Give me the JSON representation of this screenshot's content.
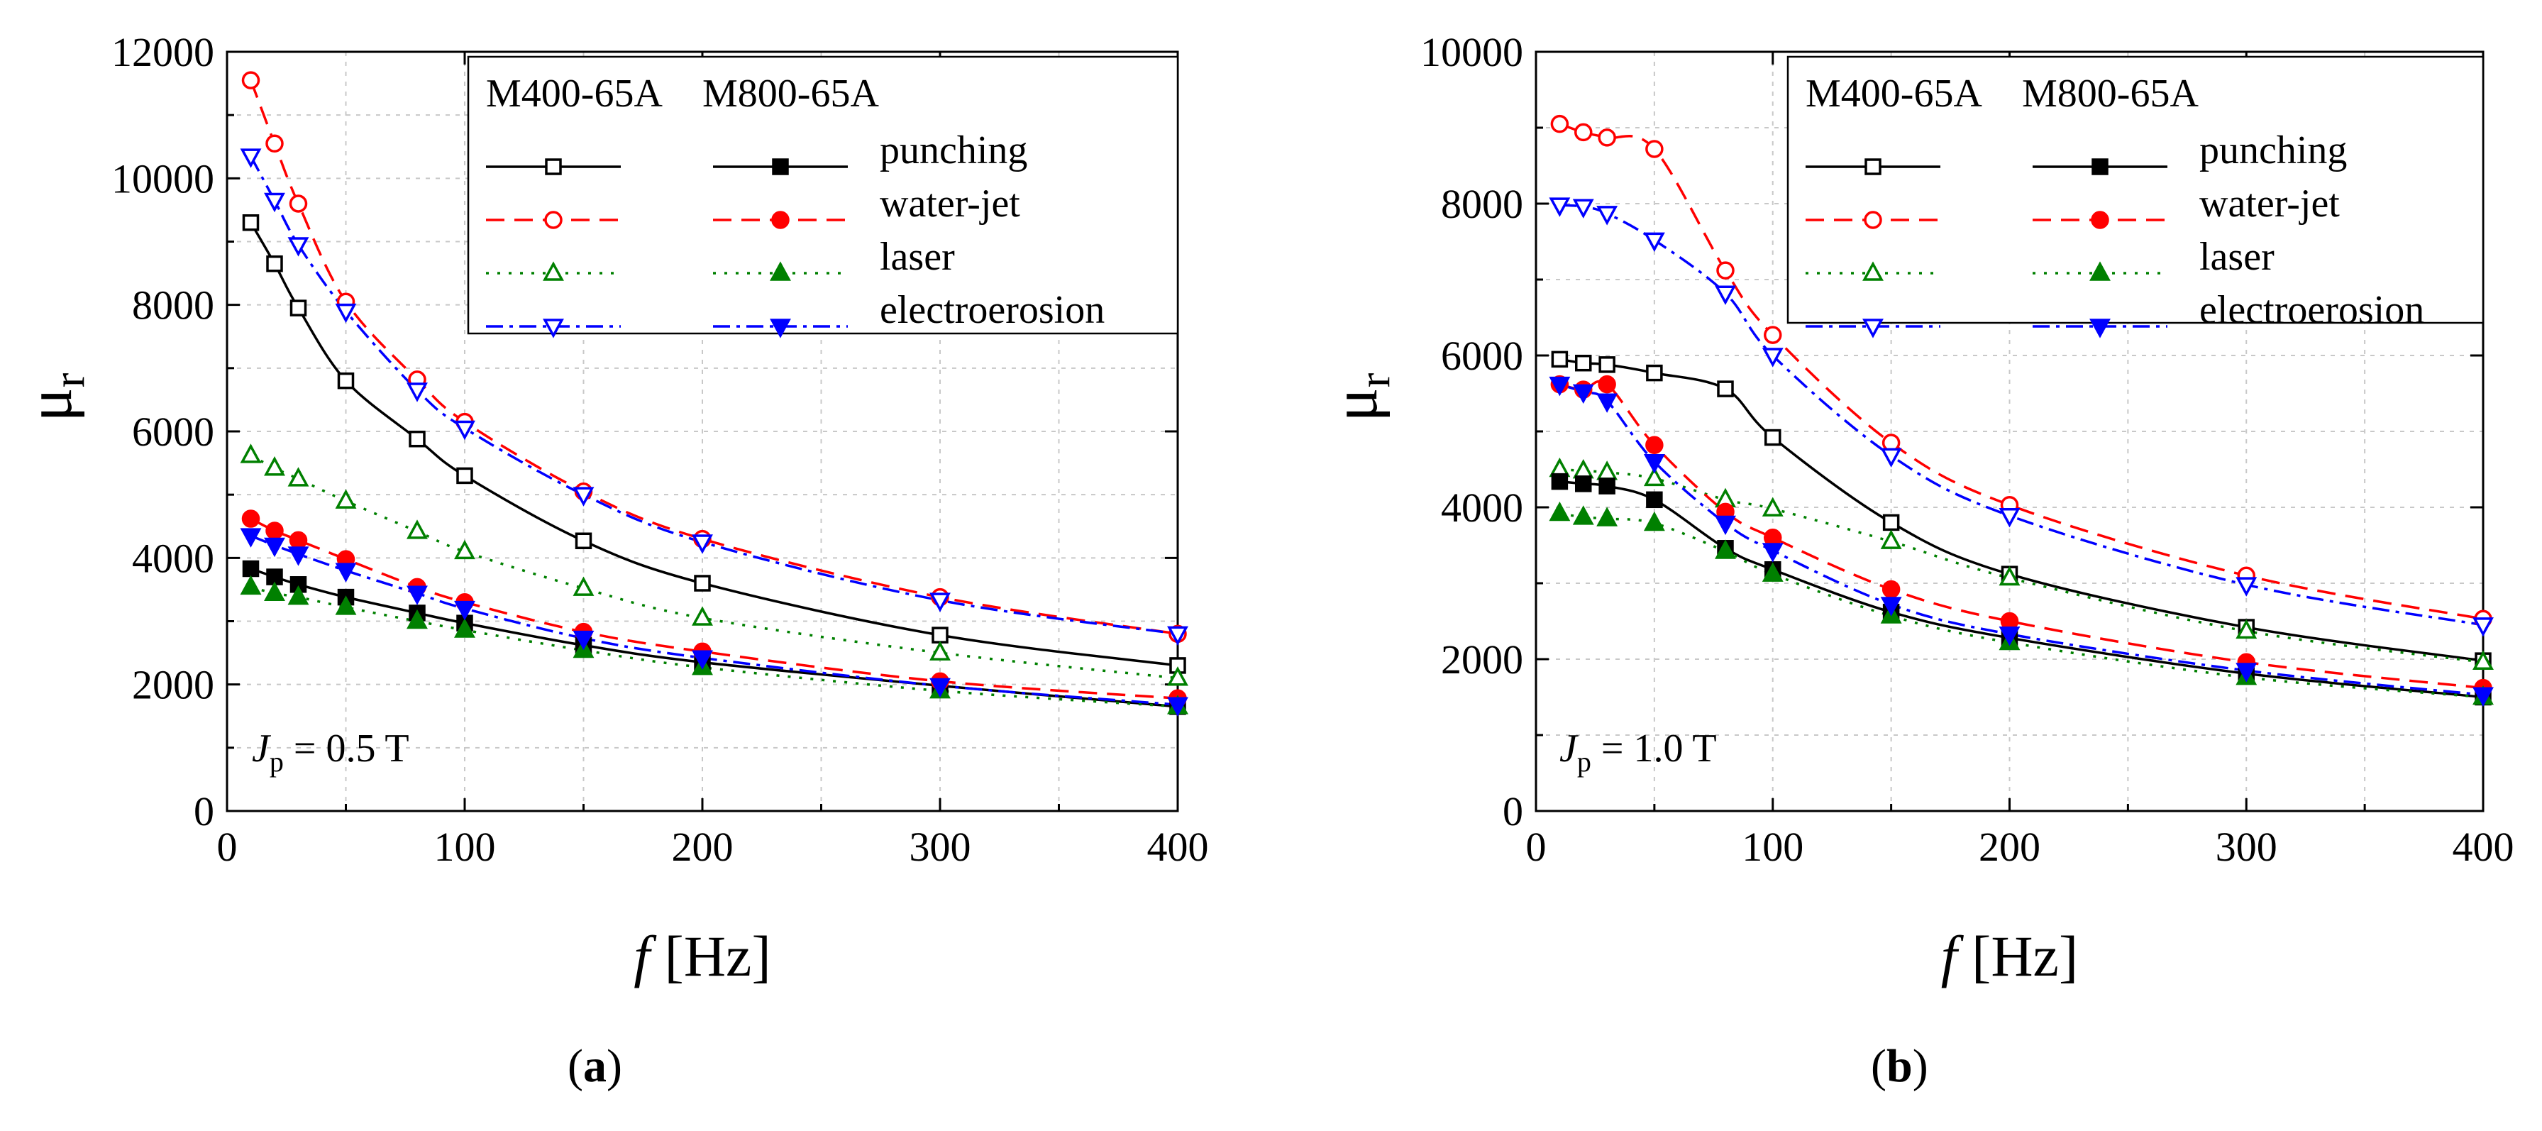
{
  "figure": {
    "xlabel_italic": "f",
    "xlabel_rest": "[Hz]",
    "ylabel_main": "μ",
    "ylabel_sub": "r",
    "legend": {
      "group_headers": [
        "M400-65A",
        "M800-65A"
      ],
      "methods": [
        "punching",
        "water-jet",
        "laser",
        "electroerosion"
      ]
    },
    "panels": [
      {
        "paren_open": "(",
        "letter": "a",
        "paren_close": ")"
      },
      {
        "paren_open": "(",
        "letter": "b",
        "paren_close": ")"
      }
    ]
  },
  "styles": {
    "punching": {
      "color": "#000000",
      "dash": "",
      "marker": "square"
    },
    "water-jet": {
      "color": "#ff0000",
      "dash": "26,14",
      "marker": "circle"
    },
    "laser": {
      "color": "#008000",
      "dash": "4,12",
      "marker": "triangle-up"
    },
    "electroerosion": {
      "color": "#0000ff",
      "dash": "24,9,5,9",
      "marker": "triangle-down"
    }
  },
  "chart_data": [
    {
      "type": "line",
      "panel": "a",
      "annotation": {
        "symbol": "J",
        "subscript": "p",
        "text": " = 0.5 T"
      },
      "xlabel": "f [Hz]",
      "ylabel": "μr",
      "xlim": [
        0,
        400
      ],
      "ylim": [
        0,
        12000
      ],
      "xticks": [
        0,
        100,
        200,
        300,
        400
      ],
      "yticks": [
        0,
        2000,
        4000,
        6000,
        8000,
        10000,
        12000
      ],
      "grid": true,
      "legend_position": "top-right",
      "x": [
        10,
        20,
        30,
        50,
        80,
        100,
        150,
        200,
        300,
        400
      ],
      "series": [
        {
          "name": "M400-65A punching",
          "material": "M400-65A",
          "method": "punching",
          "filled": false,
          "values": [
            9300,
            8650,
            7950,
            6800,
            5880,
            5300,
            4270,
            3600,
            2780,
            2300
          ]
        },
        {
          "name": "M400-65A water-jet",
          "material": "M400-65A",
          "method": "water-jet",
          "filled": false,
          "values": [
            11550,
            10550,
            9600,
            8050,
            6820,
            6150,
            5050,
            4300,
            3380,
            2800
          ]
        },
        {
          "name": "M400-65A laser",
          "material": "M400-65A",
          "method": "laser",
          "filled": false,
          "values": [
            5620,
            5420,
            5250,
            4900,
            4420,
            4100,
            3520,
            3050,
            2500,
            2100
          ]
        },
        {
          "name": "M400-65A electroerosion",
          "material": "M400-65A",
          "method": "electroerosion",
          "filled": false,
          "values": [
            10350,
            9650,
            8950,
            7900,
            6650,
            6050,
            5000,
            4250,
            3330,
            2800
          ]
        },
        {
          "name": "M800-65A punching",
          "material": "M800-65A",
          "method": "punching",
          "filled": true,
          "values": [
            3830,
            3700,
            3580,
            3380,
            3130,
            2970,
            2620,
            2350,
            1980,
            1650
          ]
        },
        {
          "name": "M800-65A water-jet",
          "material": "M800-65A",
          "method": "water-jet",
          "filled": true,
          "values": [
            4620,
            4430,
            4280,
            3980,
            3540,
            3300,
            2830,
            2520,
            2050,
            1780
          ]
        },
        {
          "name": "M800-65A laser",
          "material": "M800-65A",
          "method": "laser",
          "filled": true,
          "values": [
            3540,
            3440,
            3380,
            3220,
            3000,
            2860,
            2540,
            2270,
            1900,
            1650
          ]
        },
        {
          "name": "M800-65A electroerosion",
          "material": "M800-65A",
          "method": "electroerosion",
          "filled": true,
          "values": [
            4350,
            4200,
            4060,
            3800,
            3440,
            3200,
            2730,
            2420,
            1980,
            1680
          ]
        }
      ]
    },
    {
      "type": "line",
      "panel": "b",
      "annotation": {
        "symbol": "J",
        "subscript": "p",
        "text": " = 1.0 T"
      },
      "xlabel": "f [Hz]",
      "ylabel": "μr",
      "xlim": [
        0,
        400
      ],
      "ylim": [
        0,
        10000
      ],
      "xticks": [
        0,
        100,
        200,
        300,
        400
      ],
      "yticks": [
        0,
        2000,
        4000,
        6000,
        8000,
        10000
      ],
      "grid": true,
      "legend_position": "top-right",
      "x": [
        10,
        20,
        30,
        50,
        80,
        100,
        150,
        200,
        300,
        400
      ],
      "series": [
        {
          "name": "M400-65A punching",
          "material": "M400-65A",
          "method": "punching",
          "filled": false,
          "values": [
            5950,
            5900,
            5880,
            5770,
            5560,
            4920,
            3800,
            3120,
            2420,
            1980
          ]
        },
        {
          "name": "M400-65A water-jet",
          "material": "M400-65A",
          "method": "water-jet",
          "filled": false,
          "values": [
            9050,
            8940,
            8870,
            8720,
            7120,
            6270,
            4850,
            4030,
            3100,
            2530
          ]
        },
        {
          "name": "M400-65A laser",
          "material": "M400-65A",
          "method": "laser",
          "filled": false,
          "values": [
            4500,
            4480,
            4460,
            4380,
            4100,
            3980,
            3550,
            3070,
            2370,
            1960
          ]
        },
        {
          "name": "M400-65A electroerosion",
          "material": "M400-65A",
          "method": "electroerosion",
          "filled": false,
          "values": [
            7980,
            7960,
            7870,
            7520,
            6820,
            6000,
            4680,
            3890,
            2980,
            2450
          ]
        },
        {
          "name": "M800-65A punching",
          "material": "M800-65A",
          "method": "punching",
          "filled": true,
          "values": [
            4340,
            4310,
            4280,
            4100,
            3460,
            3180,
            2620,
            2280,
            1810,
            1500
          ]
        },
        {
          "name": "M800-65A water-jet",
          "material": "M800-65A",
          "method": "water-jet",
          "filled": true,
          "values": [
            5620,
            5550,
            5620,
            4820,
            3940,
            3600,
            2920,
            2500,
            1960,
            1620
          ]
        },
        {
          "name": "M800-65A laser",
          "material": "M800-65A",
          "method": "laser",
          "filled": true,
          "values": [
            3920,
            3870,
            3850,
            3790,
            3420,
            3120,
            2570,
            2220,
            1760,
            1500
          ]
        },
        {
          "name": "M800-65A electroerosion",
          "material": "M800-65A",
          "method": "electroerosion",
          "filled": true,
          "values": [
            5620,
            5520,
            5400,
            4600,
            3790,
            3430,
            2720,
            2330,
            1850,
            1530
          ]
        }
      ]
    }
  ]
}
